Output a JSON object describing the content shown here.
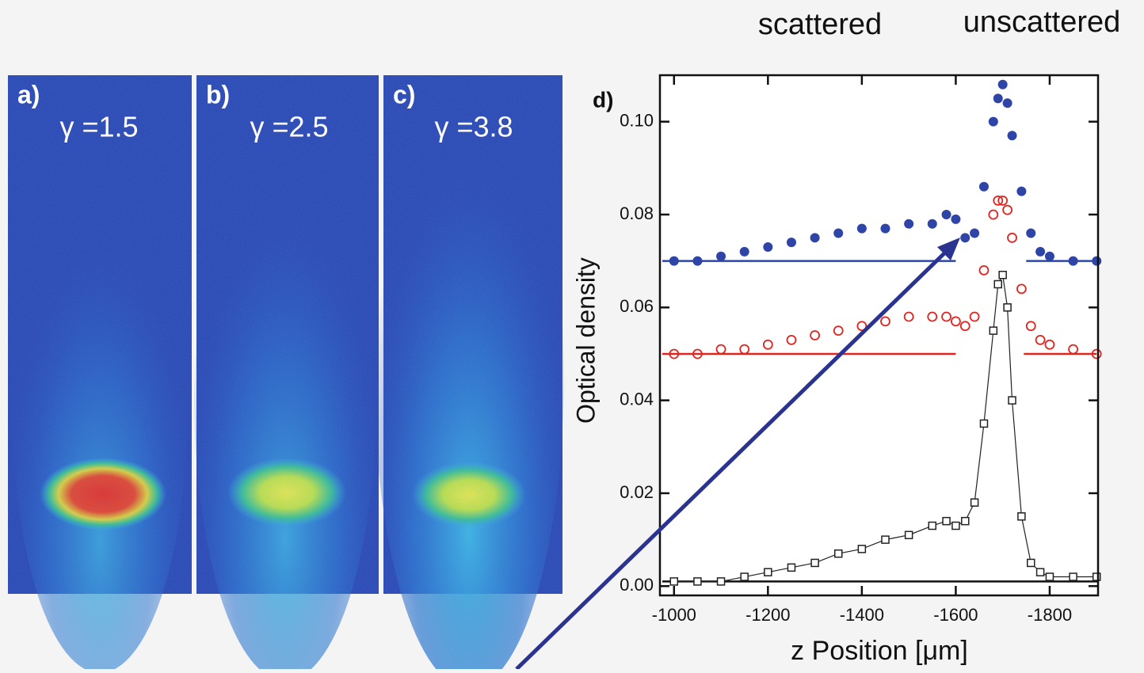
{
  "top_labels": {
    "scattered": "scattered",
    "unscattered": "unscattered"
  },
  "panels": [
    {
      "label": "a)",
      "gamma": "γ =1.5"
    },
    {
      "label": "b)",
      "gamma": "γ =2.5"
    },
    {
      "label": "c)",
      "gamma": "γ =3.8"
    }
  ],
  "chart_data": {
    "type": "scatter",
    "panel_label": "d)",
    "x_label": "z Position [μm]",
    "y_label": "Optical density",
    "x": [
      -1000,
      -1050,
      -1100,
      -1150,
      -1200,
      -1250,
      -1300,
      -1350,
      -1400,
      -1450,
      -1500,
      -1550,
      -1580,
      -1600,
      -1620,
      -1640,
      -1660,
      -1680,
      -1690,
      -1700,
      -1710,
      -1720,
      -1740,
      -1760,
      -1780,
      -1800,
      -1850,
      -1900
    ],
    "series": [
      {
        "color": "#2e44a6",
        "marker": "filled-circle",
        "values": [
          0.07,
          0.07,
          0.071,
          0.072,
          0.073,
          0.074,
          0.075,
          0.076,
          0.077,
          0.077,
          0.078,
          0.078,
          0.08,
          0.079,
          0.075,
          0.076,
          0.086,
          0.1,
          0.105,
          0.108,
          0.104,
          0.097,
          0.085,
          0.076,
          0.072,
          0.071,
          0.07,
          0.07
        ]
      },
      {
        "color": "#e0241e",
        "marker": "open-circle",
        "values": [
          0.05,
          0.05,
          0.051,
          0.051,
          0.052,
          0.053,
          0.054,
          0.055,
          0.056,
          0.057,
          0.058,
          0.058,
          0.058,
          0.057,
          0.056,
          0.058,
          0.068,
          0.08,
          0.083,
          0.083,
          0.081,
          0.075,
          0.064,
          0.056,
          0.053,
          0.052,
          0.051,
          0.05
        ]
      },
      {
        "color": "#222222",
        "marker": "open-square",
        "values": [
          0.001,
          0.001,
          0.001,
          0.002,
          0.003,
          0.004,
          0.005,
          0.007,
          0.008,
          0.01,
          0.011,
          0.013,
          0.014,
          0.013,
          0.014,
          0.018,
          0.035,
          0.055,
          0.065,
          0.067,
          0.06,
          0.04,
          0.015,
          0.005,
          0.003,
          0.002,
          0.002,
          0.002
        ]
      }
    ],
    "reference_lines": [
      {
        "color": "#2e44a6",
        "y": 0.07,
        "segments": [
          [
            -975,
            -1600
          ],
          [
            -1750,
            -1900
          ]
        ]
      },
      {
        "color": "#e0241e",
        "y": 0.05,
        "segments": [
          [
            -975,
            -1600
          ],
          [
            -1745,
            -1900
          ]
        ]
      },
      {
        "color": "#111111",
        "y": 0.001,
        "segments": [
          [
            -975,
            -1903
          ]
        ]
      }
    ],
    "xlim": [
      -970,
      -1903
    ],
    "ylim": [
      -0.002,
      0.11
    ],
    "xticks": [
      -1000,
      -1200,
      -1400,
      -1600,
      -1800
    ],
    "yticks": [
      {
        "value": 0,
        "label": "0.00"
      },
      0.02,
      0.04,
      0.06,
      0.08,
      {
        "value": 0.1,
        "label": "0.10"
      }
    ]
  }
}
